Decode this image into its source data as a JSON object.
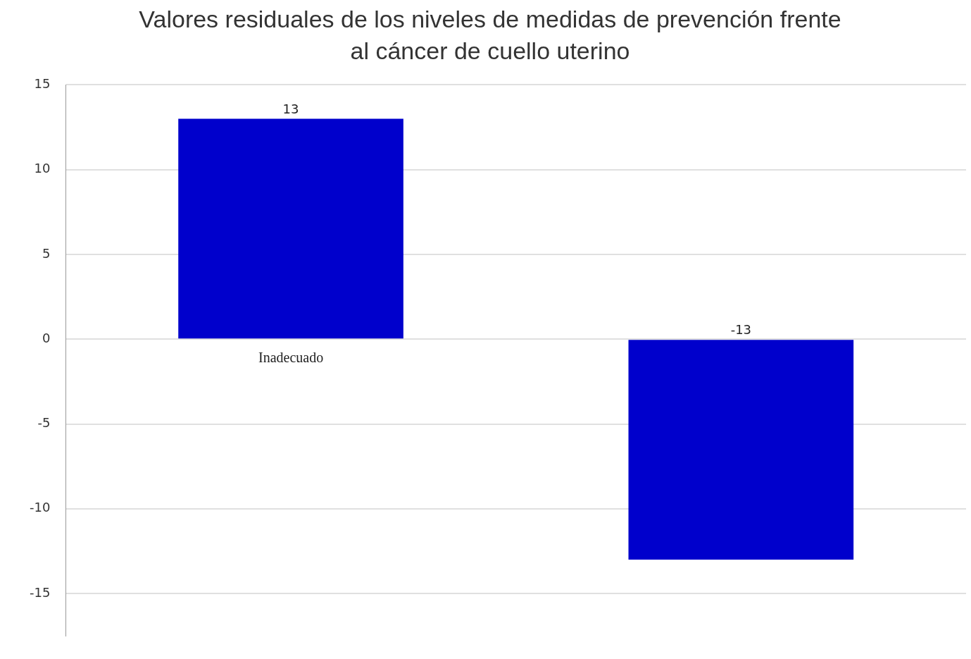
{
  "chart_data": {
    "type": "bar",
    "title": "Valores residuales de los niveles de medidas de prevención frente al cáncer de cuello uterino",
    "categories": [
      "Inadecuado",
      null
    ],
    "values": [
      13,
      -13
    ],
    "color": "#0000cc",
    "ylim": [
      -17.5,
      15
    ],
    "yticks": [
      -15,
      -10,
      -5,
      0,
      5,
      10,
      15
    ],
    "grid": "y",
    "data_labels": true
  }
}
